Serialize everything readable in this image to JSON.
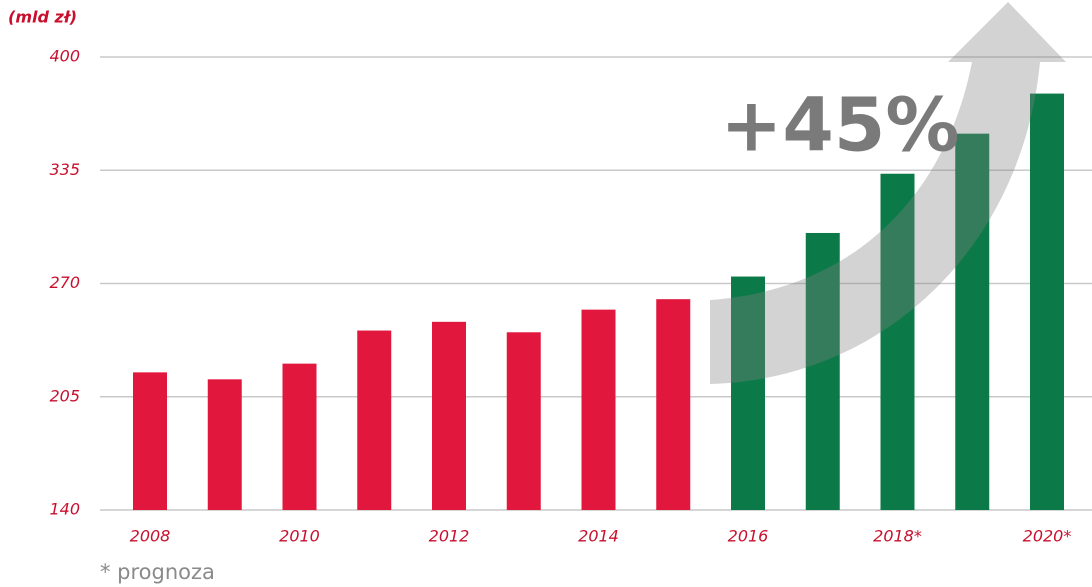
{
  "chart_data": {
    "type": "bar",
    "unit_label": "(mld zł)",
    "annotation": "+45%",
    "note": "* prognoza",
    "categories": [
      "2008",
      null,
      "2010",
      null,
      "2012",
      null,
      "2014",
      null,
      "2016",
      null,
      "2018*",
      null,
      "2020*"
    ],
    "values": [
      219,
      215,
      224,
      243,
      248,
      242,
      255,
      261,
      274,
      299,
      333,
      356,
      379
    ],
    "colors": [
      "#e1173d",
      "#e1173d",
      "#e1173d",
      "#e1173d",
      "#e1173d",
      "#e1173d",
      "#e1173d",
      "#e1173d",
      "#0b7a48",
      "#0b7a48",
      "#0b7a48",
      "#0b7a48",
      "#0b7a48"
    ],
    "ylim": [
      140,
      400
    ],
    "yticks": [
      140,
      205,
      270,
      335,
      400
    ],
    "grid": true
  }
}
